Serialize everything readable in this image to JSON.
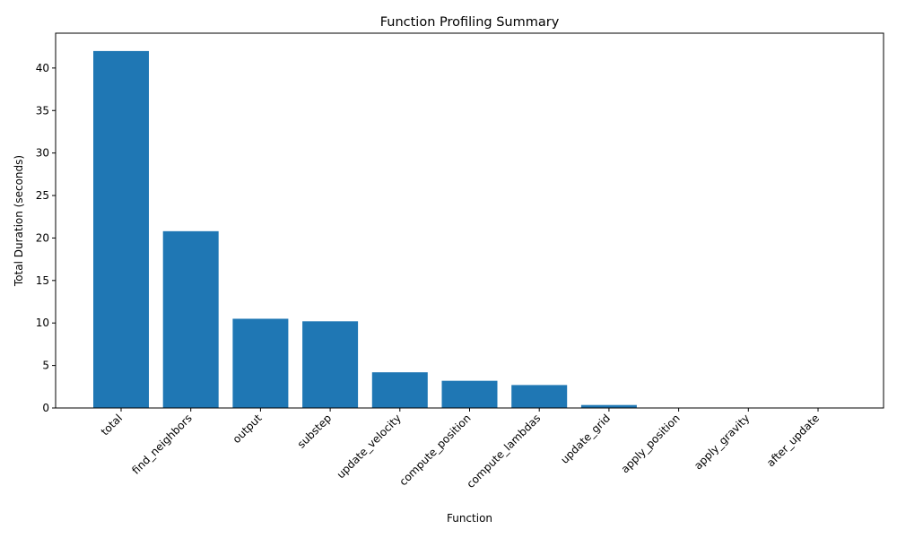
{
  "chart_data": {
    "type": "bar",
    "title": "Function Profiling Summary",
    "xlabel": "Function",
    "ylabel": "Total Duration (seconds)",
    "categories": [
      "total",
      "find_neighbors",
      "output",
      "substep",
      "update_velocity",
      "compute_position",
      "compute_lambdas",
      "update_grid",
      "apply_position",
      "apply_gravity",
      "after_update"
    ],
    "values": [
      42.0,
      20.8,
      10.5,
      10.2,
      4.2,
      3.2,
      2.7,
      0.35,
      0.02,
      0.01,
      0.01
    ],
    "ylim": [
      0,
      44.1
    ],
    "yticks": [
      0,
      5,
      10,
      15,
      20,
      25,
      30,
      35,
      40
    ],
    "bar_color": "#1f77b4",
    "grid": false,
    "legend": "none"
  }
}
